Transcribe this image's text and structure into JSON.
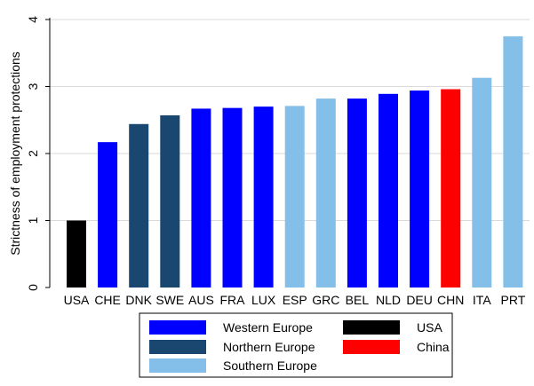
{
  "chart_data": {
    "type": "bar",
    "title": "",
    "xlabel": "",
    "ylabel": "Strictness of employment protections",
    "ylim": [
      0,
      4
    ],
    "yticks": [
      0,
      1,
      2,
      3,
      4
    ],
    "grid": true,
    "legend_position": "bottom",
    "categories": [
      "USA",
      "CHE",
      "DNK",
      "SWE",
      "AUS",
      "FRA",
      "LUX",
      "ESP",
      "GRC",
      "BEL",
      "NLD",
      "DEU",
      "CHN",
      "ITA",
      "PRT"
    ],
    "values": [
      1.0,
      2.17,
      2.44,
      2.57,
      2.67,
      2.68,
      2.7,
      2.71,
      2.82,
      2.82,
      2.89,
      2.94,
      2.96,
      3.13,
      3.75
    ],
    "groups": [
      "USA",
      "Western Europe",
      "Northern Europe",
      "Northern Europe",
      "Western Europe",
      "Western Europe",
      "Western Europe",
      "Southern Europe",
      "Southern Europe",
      "Western Europe",
      "Western Europe",
      "Western Europe",
      "China",
      "Southern Europe",
      "Southern Europe"
    ],
    "legend": [
      {
        "name": "Western Europe",
        "color": "#0000ff"
      },
      {
        "name": "USA",
        "color": "#000000"
      },
      {
        "name": "Northern Europe",
        "color": "#1a476f"
      },
      {
        "name": "China",
        "color": "#ff0000"
      },
      {
        "name": "Southern Europe",
        "color": "#83bfe8"
      }
    ]
  }
}
